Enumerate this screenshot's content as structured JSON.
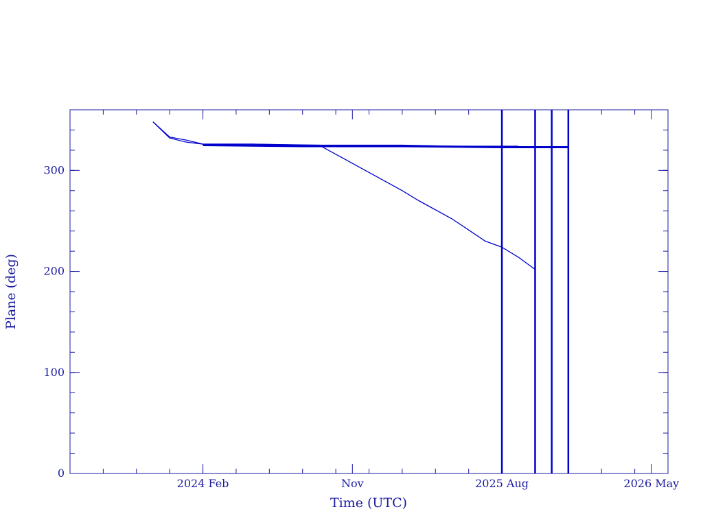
{
  "chart_data": {
    "type": "line",
    "x_label": "Time (UTC)",
    "y_label": "Plane (deg)",
    "xlim": [
      "2023-06",
      "2026-06"
    ],
    "xticks": [
      {
        "value": "2024-02",
        "label": "2024 Feb"
      },
      {
        "value": "2024-11",
        "label": "Nov"
      },
      {
        "value": "2025-08",
        "label": "2025 Aug"
      },
      {
        "value": "2026-05",
        "label": "2026 May"
      }
    ],
    "ylim": [
      0,
      360
    ],
    "yticks": [
      0,
      100,
      200,
      300
    ],
    "color": "#0000cc",
    "series": [
      {
        "x": [
          "2023-11",
          "2023-12",
          "2024-01",
          "2024-02",
          "2024-05",
          "2024-08",
          "2024-11",
          "2025-02",
          "2025-05",
          "2025-09"
        ],
        "values": [
          348,
          333,
          330,
          326,
          326,
          325,
          325,
          325,
          324,
          324
        ]
      },
      {
        "x": [
          "2023-11",
          "2023-12",
          "2024-01",
          "2024-02",
          "2024-05",
          "2024-09",
          "2024-10",
          "2024-11",
          "2024-12",
          "2025-01",
          "2025-02",
          "2025-03",
          "2025-04",
          "2025-05",
          "2025-06",
          "2025-07",
          "2025-08",
          "2025-09",
          "2025-10"
        ],
        "values": [
          348,
          332,
          328,
          326,
          326,
          325,
          316,
          307,
          298,
          289,
          280,
          270,
          261,
          252,
          241,
          230,
          224,
          214,
          202
        ]
      },
      {
        "x": [
          "2024-02",
          "2024-08",
          "2025-02",
          "2025-08",
          "2025-12"
        ],
        "values": [
          325,
          324,
          324,
          323,
          323
        ]
      }
    ],
    "vertical_lines": [
      "2025-08",
      "2025-10",
      "2025-11",
      "2025-12"
    ]
  }
}
